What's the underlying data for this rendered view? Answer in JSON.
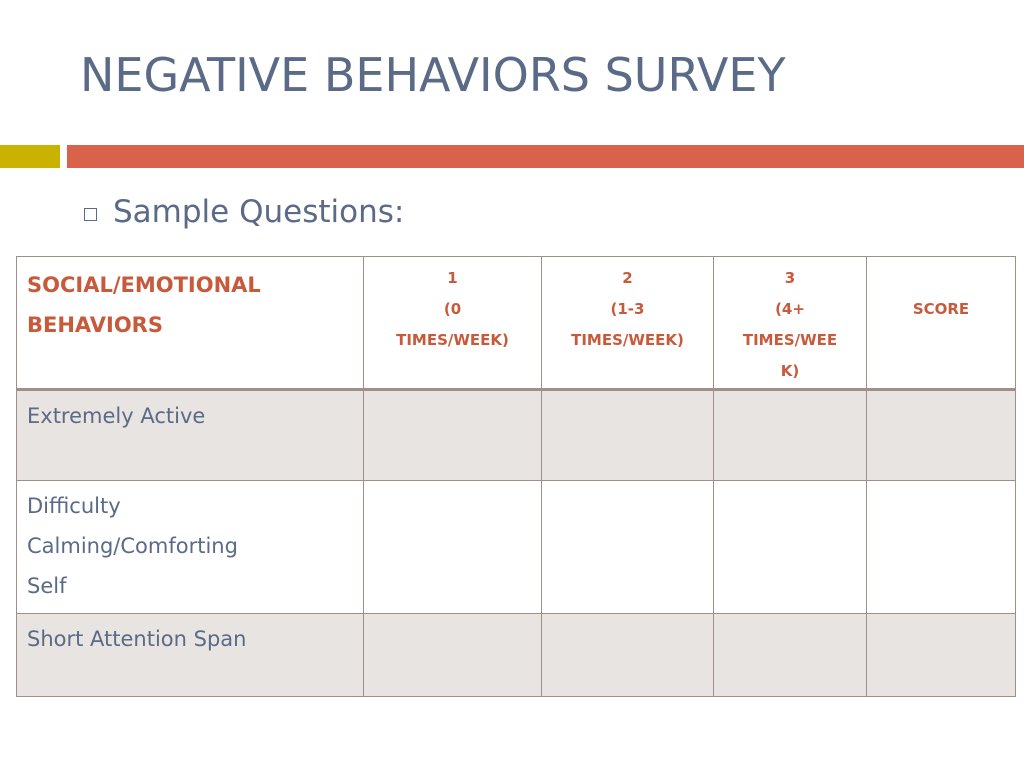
{
  "title": "NEGATIVE BEHAVIORS SURVEY",
  "colors": {
    "title": "#5b6a86",
    "accent_gold": "#c9b300",
    "accent_orange": "#d8634a",
    "header_text": "#c85a3c",
    "shaded_row": "#e8e4e1",
    "border": "#a08f88"
  },
  "bullet": {
    "icon": "hollow-square-bullet-icon",
    "text": "Sample Questions:"
  },
  "table": {
    "header": {
      "category": [
        "SOCIAL/EMOTIONAL",
        "BEHAVIORS"
      ],
      "columns": [
        {
          "lines": [
            "1",
            "(0",
            "TIMES/WEEK)"
          ]
        },
        {
          "lines": [
            "2",
            "(1-3",
            "TIMES/WEEK)"
          ]
        },
        {
          "lines": [
            "3",
            "(4+",
            "TIMES/WEE",
            "K)"
          ]
        }
      ],
      "score": "SCORE"
    },
    "rows": [
      {
        "lines": [
          "Extremely Active"
        ],
        "values": [
          "",
          "",
          "",
          ""
        ]
      },
      {
        "lines": [
          "Difficulty",
          "Calming/Comforting",
          "Self"
        ],
        "values": [
          "",
          "",
          "",
          ""
        ]
      },
      {
        "lines": [
          "Short Attention Span"
        ],
        "values": [
          "",
          "",
          "",
          ""
        ]
      }
    ]
  }
}
